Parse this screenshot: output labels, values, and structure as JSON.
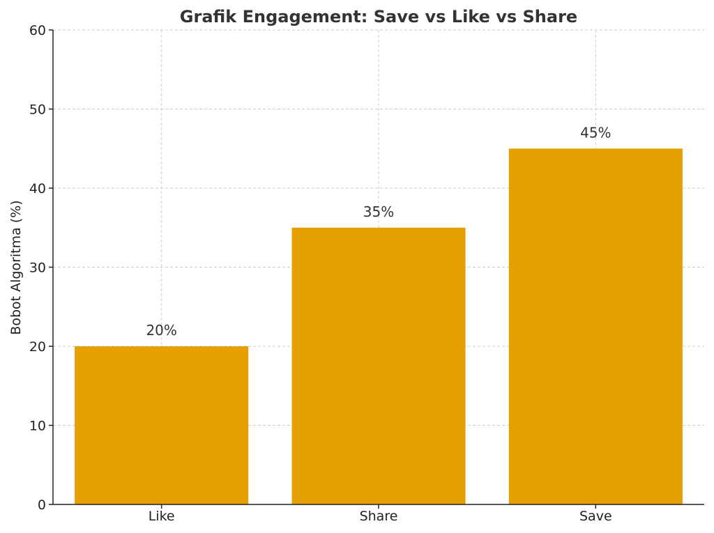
{
  "chart_data": {
    "type": "bar",
    "title": "Grafik Engagement: Save vs Like vs Share",
    "xlabel": "",
    "ylabel": "Bobot Algoritma (%)",
    "categories": [
      "Like",
      "Share",
      "Save"
    ],
    "values": [
      20,
      35,
      45
    ],
    "data_labels": [
      "20%",
      "35%",
      "45%"
    ],
    "ylim": [
      0,
      60
    ],
    "yticks": [
      0,
      10,
      20,
      30,
      40,
      50,
      60
    ],
    "grid": true,
    "bar_color": "#E69F00"
  }
}
